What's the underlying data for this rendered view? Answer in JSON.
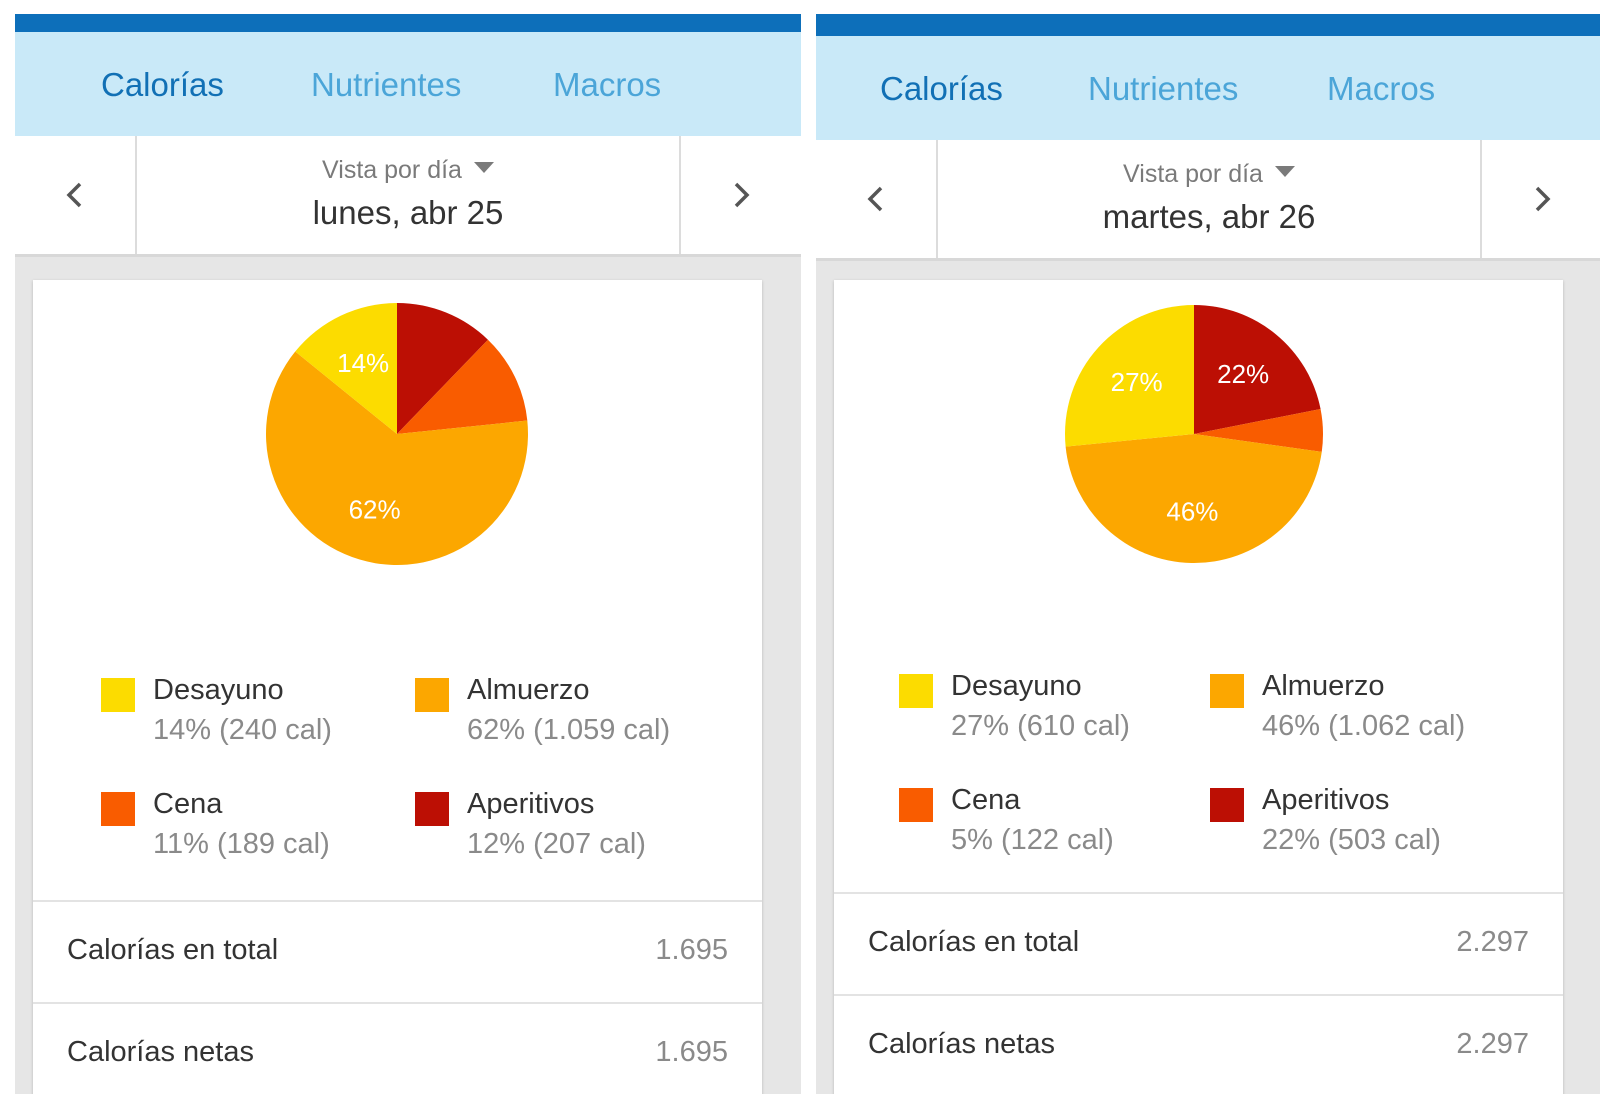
{
  "panels": [
    {
      "tabs": [
        {
          "label": "Calorías",
          "active": true
        },
        {
          "label": "Nutrientes",
          "active": false
        },
        {
          "label": "Macros",
          "active": false
        }
      ],
      "view_mode": "Vista por día",
      "date": "lunes, abr 25",
      "legend": [
        {
          "name": "Desayuno",
          "value": "14% (240 cal)",
          "color": "#fcdc00"
        },
        {
          "name": "Almuerzo",
          "value": "62% (1.059 cal)",
          "color": "#fca700"
        },
        {
          "name": "Cena",
          "value": "11% (189 cal)",
          "color": "#f95c00"
        },
        {
          "name": "Aperitivos",
          "value": "12% (207 cal)",
          "color": "#bc0f04"
        }
      ],
      "rows": [
        {
          "label": "Calorías en total",
          "value": "1.695"
        },
        {
          "label": "Calorías netas",
          "value": "1.695"
        }
      ]
    },
    {
      "tabs": [
        {
          "label": "Calorías",
          "active": true
        },
        {
          "label": "Nutrientes",
          "active": false
        },
        {
          "label": "Macros",
          "active": false
        }
      ],
      "view_mode": "Vista por día",
      "date": "martes, abr 26",
      "legend": [
        {
          "name": "Desayuno",
          "value": "27% (610 cal)",
          "color": "#fcdc00"
        },
        {
          "name": "Almuerzo",
          "value": "46% (1.062 cal)",
          "color": "#fca700"
        },
        {
          "name": "Cena",
          "value": "5% (122 cal)",
          "color": "#f95c00"
        },
        {
          "name": "Aperitivos",
          "value": "22% (503 cal)",
          "color": "#bc0f04"
        }
      ],
      "rows": [
        {
          "label": "Calorías en total",
          "value": "2.297"
        },
        {
          "label": "Calorías netas",
          "value": "2.297"
        }
      ]
    }
  ],
  "chart_data": [
    {
      "type": "pie",
      "categories": [
        "Aperitivos",
        "Cena",
        "Almuerzo",
        "Desayuno"
      ],
      "values": [
        207,
        189,
        1059,
        240
      ],
      "slice_labels": [
        "",
        "",
        "62%",
        "14%"
      ],
      "colors": [
        "#bc0f04",
        "#f95c00",
        "#fca700",
        "#fcdc00"
      ]
    },
    {
      "type": "pie",
      "categories": [
        "Aperitivos",
        "Cena",
        "Almuerzo",
        "Desayuno"
      ],
      "values": [
        503,
        122,
        1062,
        610
      ],
      "slice_labels": [
        "22%",
        "",
        "46%",
        "27%"
      ],
      "colors": [
        "#bc0f04",
        "#f95c00",
        "#fca700",
        "#fcdc00"
      ]
    }
  ]
}
